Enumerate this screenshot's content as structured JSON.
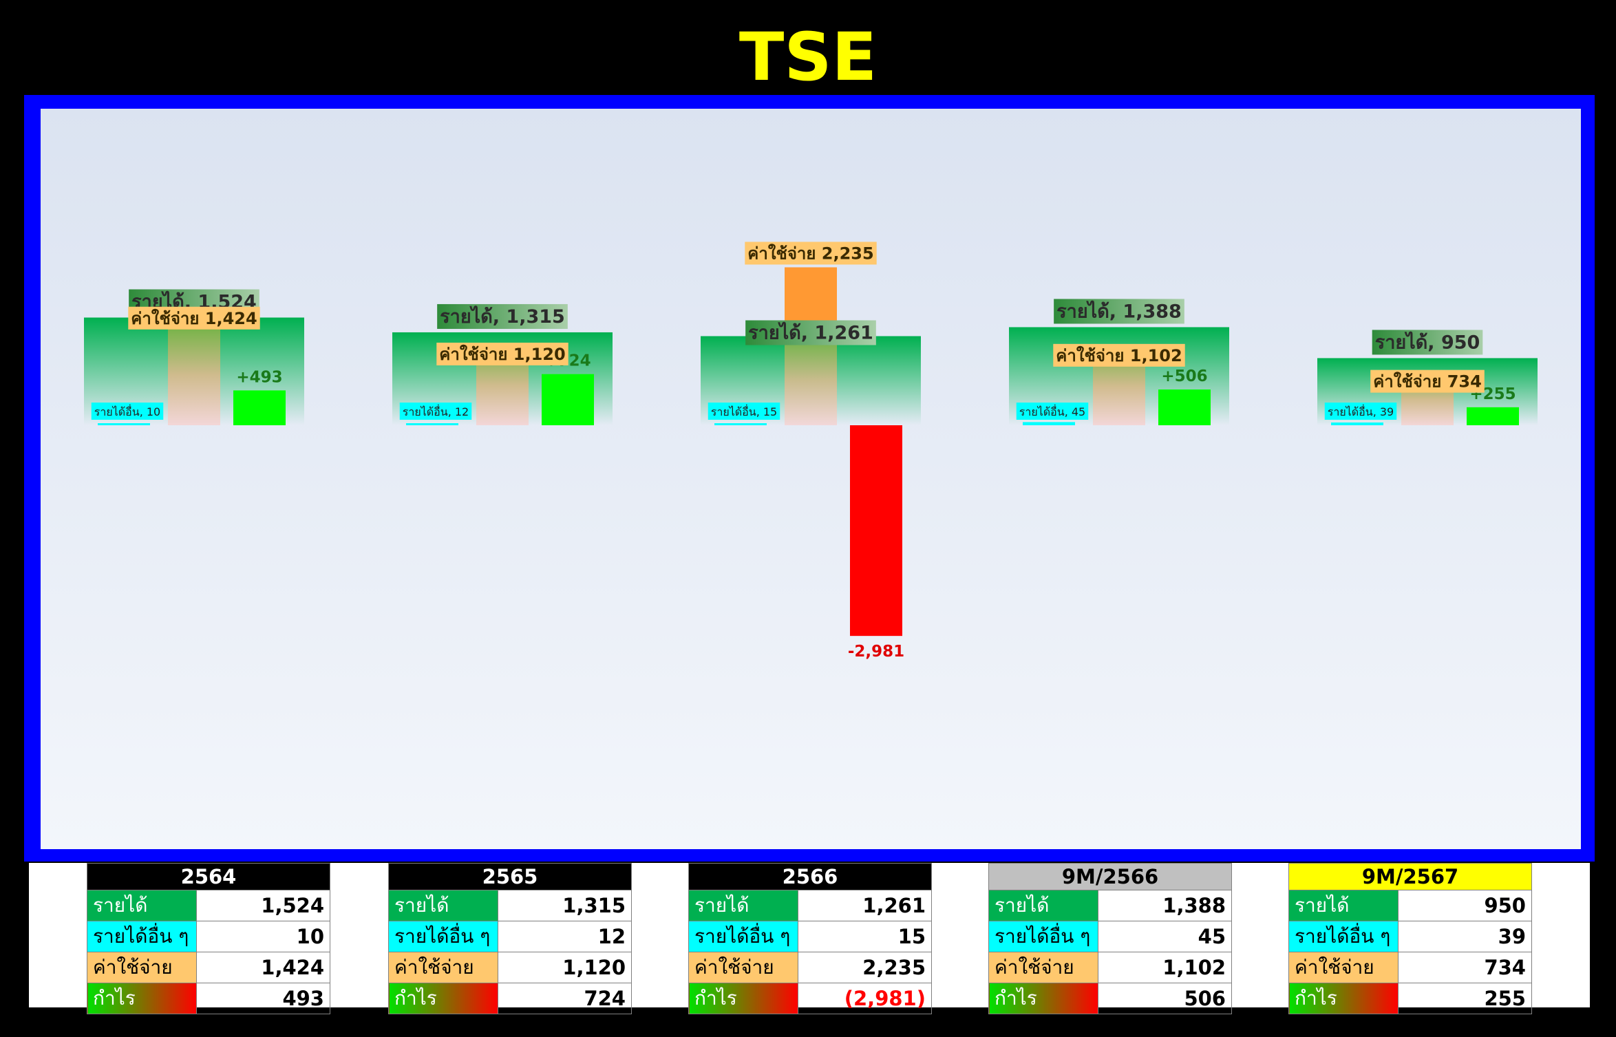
{
  "title": "TSE",
  "colors": {
    "revenue": "#00b050",
    "other_income": "#00ffff",
    "expense_label": "#ffc86e",
    "expense_bar": "#ff9933",
    "profit": "#00ff00",
    "loss": "#ff0000",
    "frame": "#0000ff",
    "title": "#ffff00"
  },
  "chart_data": {
    "type": "bar",
    "title": "TSE",
    "categories": [
      "2564",
      "2565",
      "2566",
      "9M/2566",
      "9M/2567"
    ],
    "series": [
      {
        "name": "รายได้",
        "values": [
          1524,
          1315,
          1261,
          1388,
          950
        ]
      },
      {
        "name": "รายได้อื่น",
        "values": [
          10,
          12,
          15,
          45,
          39
        ]
      },
      {
        "name": "ค่าใช้จ่าย",
        "values": [
          1424,
          1120,
          2235,
          1102,
          734
        ]
      },
      {
        "name": "กำไร",
        "values": [
          493,
          724,
          -2981,
          506,
          255
        ]
      }
    ],
    "data_labels": {
      "revenue": [
        "รายได้, 1,524",
        "รายได้, 1,315",
        "รายได้, 1,261",
        "รายได้, 1,388",
        "รายได้, 950"
      ],
      "expense": [
        "ค่าใช้จ่าย 1,424",
        "ค่าใช้จ่าย 1,120",
        "ค่าใช้จ่าย 2,235",
        "ค่าใช้จ่าย 1,102",
        "ค่าใช้จ่าย 734"
      ],
      "other_income": [
        "รายได้อื่น, 10",
        "รายได้อื่น, 12",
        "รายได้อื่น, 15",
        "รายได้อื่น, 45",
        "รายได้อื่น, 39"
      ],
      "profit": [
        "+493",
        "+724",
        "-2,981",
        "+506",
        "+255"
      ]
    }
  },
  "tables": [
    {
      "header": "2564",
      "header_bg": "#000000",
      "header_color": "#ffffff",
      "rows": [
        {
          "label": "รายได้",
          "value": "1,524"
        },
        {
          "label": "รายได้อื่น ๆ",
          "value": "10"
        },
        {
          "label": "ค่าใช้จ่าย",
          "value": "1,424"
        },
        {
          "label": "กำไร",
          "value": "493"
        }
      ]
    },
    {
      "header": "2565",
      "header_bg": "#000000",
      "header_color": "#ffffff",
      "rows": [
        {
          "label": "รายได้",
          "value": "1,315"
        },
        {
          "label": "รายได้อื่น ๆ",
          "value": "12"
        },
        {
          "label": "ค่าใช้จ่าย",
          "value": "1,120"
        },
        {
          "label": "กำไร",
          "value": "724"
        }
      ]
    },
    {
      "header": "2566",
      "header_bg": "#000000",
      "header_color": "#ffffff",
      "rows": [
        {
          "label": "รายได้",
          "value": "1,261"
        },
        {
          "label": "รายได้อื่น ๆ",
          "value": "15"
        },
        {
          "label": "ค่าใช้จ่าย",
          "value": "2,235"
        },
        {
          "label": "กำไร",
          "value": "(2,981)"
        }
      ]
    },
    {
      "header": "9M/2566",
      "header_bg": "#c0c0c0",
      "header_color": "#000000",
      "rows": [
        {
          "label": "รายได้",
          "value": "1,388"
        },
        {
          "label": "รายได้อื่น ๆ",
          "value": "45"
        },
        {
          "label": "ค่าใช้จ่าย",
          "value": "1,102"
        },
        {
          "label": "กำไร",
          "value": "506"
        }
      ]
    },
    {
      "header": "9M/2567",
      "header_bg": "#ffff00",
      "header_color": "#000000",
      "rows": [
        {
          "label": "รายได้",
          "value": "950"
        },
        {
          "label": "รายได้อื่น ๆ",
          "value": "39"
        },
        {
          "label": "ค่าใช้จ่าย",
          "value": "734"
        },
        {
          "label": "กำไร",
          "value": "255"
        }
      ]
    }
  ]
}
